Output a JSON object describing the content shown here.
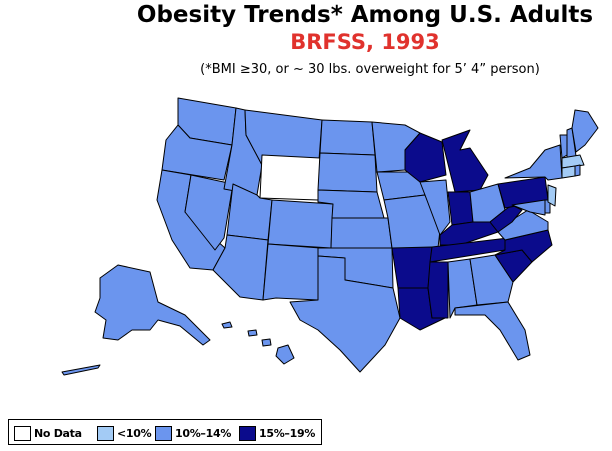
{
  "title": "Obesity Trends*  Among U.S. Adults",
  "subtitle": "BRFSS, 1993",
  "note": "(*BMI ≥30, or ~ 30 lbs. overweight for 5’ 4” person)",
  "colors": {
    "no_data": "#ffffff",
    "lt10": "#a3cbf5",
    "c10_14": "#6b95ee",
    "c15_19": "#0b0b8c"
  },
  "legend": [
    {
      "key": "no_data",
      "label": "No Data"
    },
    {
      "key": "lt10",
      "label": "<10%"
    },
    {
      "key": "c10_14",
      "label": "10%–14%"
    },
    {
      "key": "c15_19",
      "label": "15%–19%"
    }
  ],
  "states": {
    "WY": "no_data",
    "CT": "lt10",
    "MA": "lt10",
    "NJ": "lt10",
    "WA": "c10_14",
    "OR": "c10_14",
    "CA": "c10_14",
    "NV": "c10_14",
    "ID": "c10_14",
    "MT": "c10_14",
    "UT": "c10_14",
    "AZ": "c10_14",
    "CO": "c10_14",
    "NM": "c10_14",
    "ND": "c10_14",
    "SD": "c10_14",
    "NE": "c10_14",
    "KS": "c10_14",
    "OK": "c10_14",
    "TX": "c10_14",
    "MN": "c10_14",
    "IA": "c10_14",
    "MO": "c10_14",
    "IL": "c10_14",
    "OH": "c10_14",
    "AL": "c10_14",
    "GA": "c10_14",
    "FL": "c10_14",
    "NY": "c10_14",
    "VT": "c10_14",
    "NH": "c10_14",
    "ME": "c10_14",
    "RI": "c10_14",
    "DE": "c10_14",
    "MD": "c10_14",
    "VA": "c10_14",
    "AK": "c10_14",
    "HI": "c10_14",
    "WI": "c15_19",
    "MI": "c15_19",
    "IN": "c15_19",
    "KY": "c15_19",
    "TN": "c15_19",
    "AR": "c15_19",
    "LA": "c15_19",
    "MS": "c15_19",
    "WV": "c15_19",
    "NC": "c15_19",
    "SC": "c15_19",
    "PA": "c15_19"
  }
}
